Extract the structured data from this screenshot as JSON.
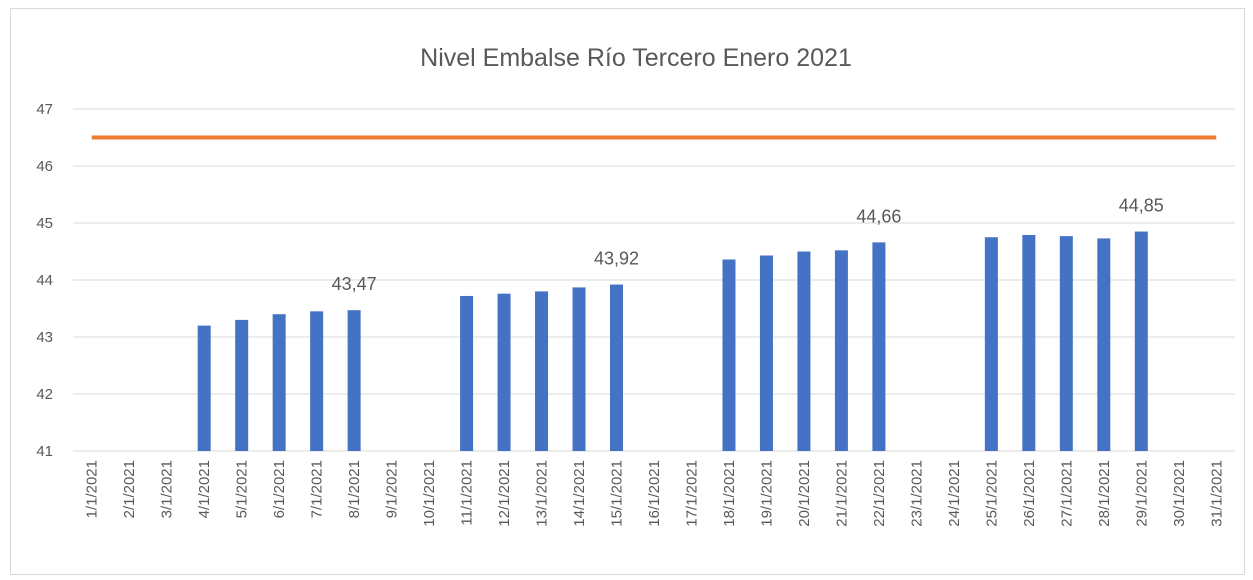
{
  "chart_data": {
    "type": "bar",
    "title": "Nivel Embalse Río Tercero Enero 2021",
    "categories": [
      "1/1/2021",
      "2/1/2021",
      "3/1/2021",
      "4/1/2021",
      "5/1/2021",
      "6/1/2021",
      "7/1/2021",
      "8/1/2021",
      "9/1/2021",
      "10/1/2021",
      "11/1/2021",
      "12/1/2021",
      "13/1/2021",
      "14/1/2021",
      "15/1/2021",
      "16/1/2021",
      "17/1/2021",
      "18/1/2021",
      "19/1/2021",
      "20/1/2021",
      "21/1/2021",
      "22/1/2021",
      "23/1/2021",
      "24/1/2021",
      "25/1/2021",
      "26/1/2021",
      "27/1/2021",
      "28/1/2021",
      "29/1/2021",
      "30/1/2021",
      "31/1/2021"
    ],
    "series": [
      {
        "type": "bar",
        "color": "#4472c4",
        "values": [
          null,
          null,
          null,
          43.2,
          43.3,
          43.4,
          43.45,
          43.47,
          null,
          null,
          43.72,
          43.76,
          43.8,
          43.87,
          43.92,
          null,
          null,
          44.36,
          44.43,
          44.5,
          44.52,
          44.66,
          null,
          null,
          44.75,
          44.79,
          44.77,
          44.73,
          44.85,
          null,
          null
        ],
        "value_labels": [
          null,
          null,
          null,
          null,
          null,
          null,
          null,
          "43,47",
          null,
          null,
          null,
          null,
          null,
          null,
          "43,92",
          null,
          null,
          null,
          null,
          null,
          null,
          "44,66",
          null,
          null,
          null,
          null,
          null,
          null,
          "44,85",
          null,
          null
        ]
      },
      {
        "type": "line",
        "color": "#ed7d31",
        "values": [
          46.5,
          46.5,
          46.5,
          46.5,
          46.5,
          46.5,
          46.5,
          46.5,
          46.5,
          46.5,
          46.5,
          46.5,
          46.5,
          46.5,
          46.5,
          46.5,
          46.5,
          46.5,
          46.5,
          46.5,
          46.5,
          46.5,
          46.5,
          46.5,
          46.5,
          46.5,
          46.5,
          46.5,
          46.5,
          46.5,
          46.5
        ]
      }
    ],
    "ylim": [
      41,
      47
    ],
    "yticks": [
      41,
      42,
      43,
      44,
      45,
      46,
      47
    ],
    "grid": true
  }
}
